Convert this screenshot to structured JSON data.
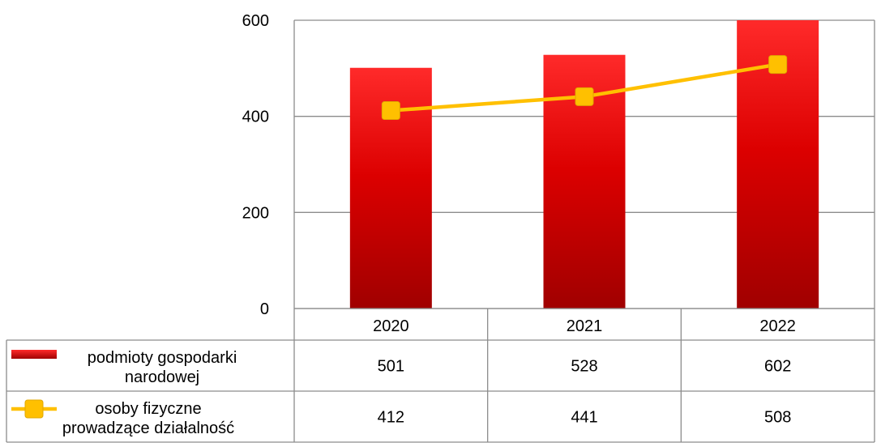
{
  "chart_data": {
    "type": "bar",
    "categories": [
      "2020",
      "2021",
      "2022"
    ],
    "series": [
      {
        "name": "podmioty gospodarki narodowej",
        "name_lines": [
          "podmioty gospodarki",
          "narodowej"
        ],
        "kind": "bar",
        "color": "#e31212",
        "values": [
          501,
          528,
          602
        ]
      },
      {
        "name": "osoby fizyczne prowadzące działalność",
        "name_lines": [
          "osoby fizyczne",
          "prowadzące działalność"
        ],
        "kind": "line",
        "color": "#ffc000",
        "values": [
          412,
          441,
          508
        ]
      }
    ],
    "yticks": [
      0,
      200,
      400,
      600
    ],
    "ylim": [
      0,
      600
    ],
    "grid": true,
    "legend": "data-table",
    "title": "",
    "xlabel": "",
    "ylabel": ""
  }
}
